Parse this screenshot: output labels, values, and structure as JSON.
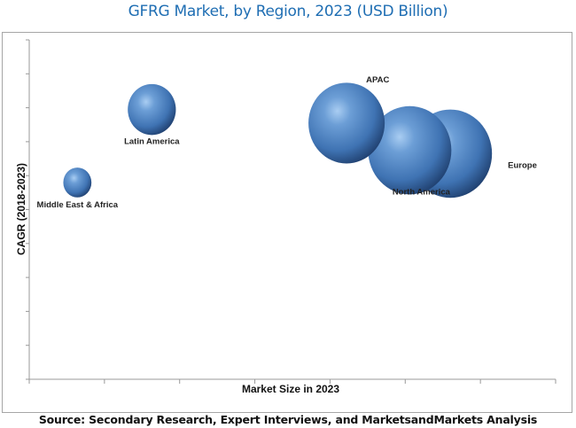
{
  "chart_data": {
    "type": "scatter",
    "subtype": "bubble",
    "title": "GFRG Market, by Region, 2023 (USD Billion)",
    "xlabel": "Market Size in 2023",
    "ylabel": "CAGR (2018-2023)",
    "x_tick_labels_shown": false,
    "y_tick_labels_shown": false,
    "xlim": [
      0,
      7
    ],
    "ylim": [
      0,
      10
    ],
    "grid": false,
    "legend": "none",
    "bubble_color": "#4a7fbf",
    "points": [
      {
        "label": "Europe",
        "x": 5.6,
        "y": 6.7,
        "size": 10.5,
        "label_position": "right"
      },
      {
        "label": "North America",
        "x": 5.06,
        "y": 6.8,
        "size": 10.5,
        "label_position": "below"
      },
      {
        "label": "APAC",
        "x": 4.22,
        "y": 7.6,
        "size": 8.8,
        "label_position": "top-right"
      },
      {
        "label": "Latin America",
        "x": 1.63,
        "y": 8.0,
        "size": 3.5,
        "label_position": "below"
      },
      {
        "label": "Middle East & Africa",
        "x": 0.64,
        "y": 5.85,
        "size": 1.2,
        "label_position": "below"
      }
    ]
  },
  "source": "Source: Secondary Research, Expert Interviews, and MarketsandMarkets Analysis"
}
